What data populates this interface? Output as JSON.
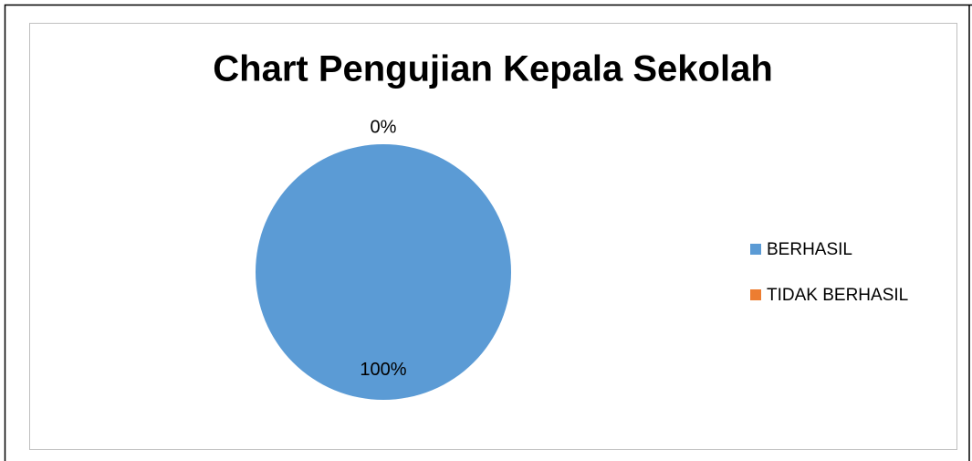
{
  "chart_data": {
    "type": "pie",
    "title": "Chart Pengujian Kepala Sekolah",
    "categories": [
      "BERHASIL",
      "TIDAK BERHASIL"
    ],
    "values": [
      100,
      0
    ],
    "value_labels": [
      "100%",
      "0%"
    ],
    "colors": [
      "#5b9bd5",
      "#ed7d31"
    ],
    "legend": "right"
  }
}
